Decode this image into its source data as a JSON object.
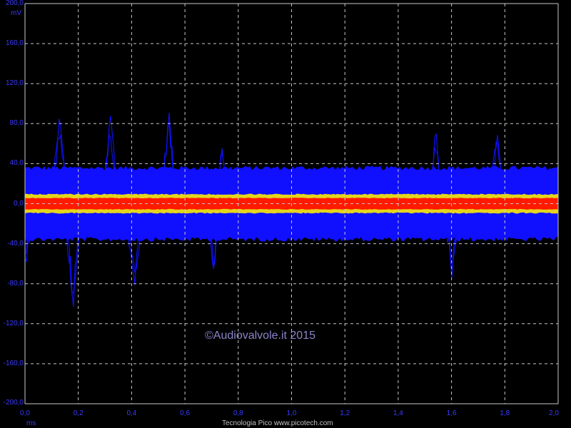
{
  "scope": {
    "y_unit": "mV",
    "x_unit": "ms",
    "credit": "Tecnologia Pico  www.picotech.com",
    "watermark": "©Audiovalvole.it 2015"
  },
  "colors": {
    "background": "#000000",
    "grid": "#c8c8c8",
    "axis_label": "#3a3aff",
    "trace_blue": "#1010ff",
    "trace_yellow": "#f0e010",
    "trace_red": "#ff1a00",
    "watermark": "#8a84c8"
  },
  "chart_data": {
    "type": "line",
    "title": "",
    "xlabel": "ms",
    "ylabel": "mV",
    "xlim": [
      0.0,
      2.0
    ],
    "ylim": [
      -200.0,
      200.0
    ],
    "grid": true,
    "x_ticks": [
      "0,0",
      "0,2",
      "0,4",
      "0,6",
      "0,8",
      "1,0",
      "1,2",
      "1,4",
      "1,6",
      "1,8",
      "2,0"
    ],
    "y_ticks": [
      "200,0",
      "160,0",
      "120,0",
      "80,0",
      "40,0",
      "0,0",
      "-40,0",
      "-80,0",
      "-120,0",
      "-160,0",
      "-200,0"
    ],
    "persistence_bands": [
      {
        "color": "red",
        "y_range": [
          -6,
          6
        ]
      },
      {
        "color": "yellow",
        "y_range": [
          -10,
          10
        ]
      },
      {
        "color": "blue",
        "y_range": [
          -38,
          38
        ]
      }
    ],
    "positive_peaks": [
      {
        "x": 0.13,
        "y": 90
      },
      {
        "x": 0.32,
        "y": 95
      },
      {
        "x": 0.54,
        "y": 94
      },
      {
        "x": 0.73,
        "y": 95
      },
      {
        "x": 1.54,
        "y": 78
      },
      {
        "x": 1.77,
        "y": 76
      }
    ],
    "negative_peaks": [
      {
        "x": 0.0,
        "y": -72
      },
      {
        "x": 0.18,
        "y": -112
      },
      {
        "x": 0.41,
        "y": -88
      },
      {
        "x": 0.71,
        "y": -82
      },
      {
        "x": 1.6,
        "y": -78
      }
    ]
  }
}
